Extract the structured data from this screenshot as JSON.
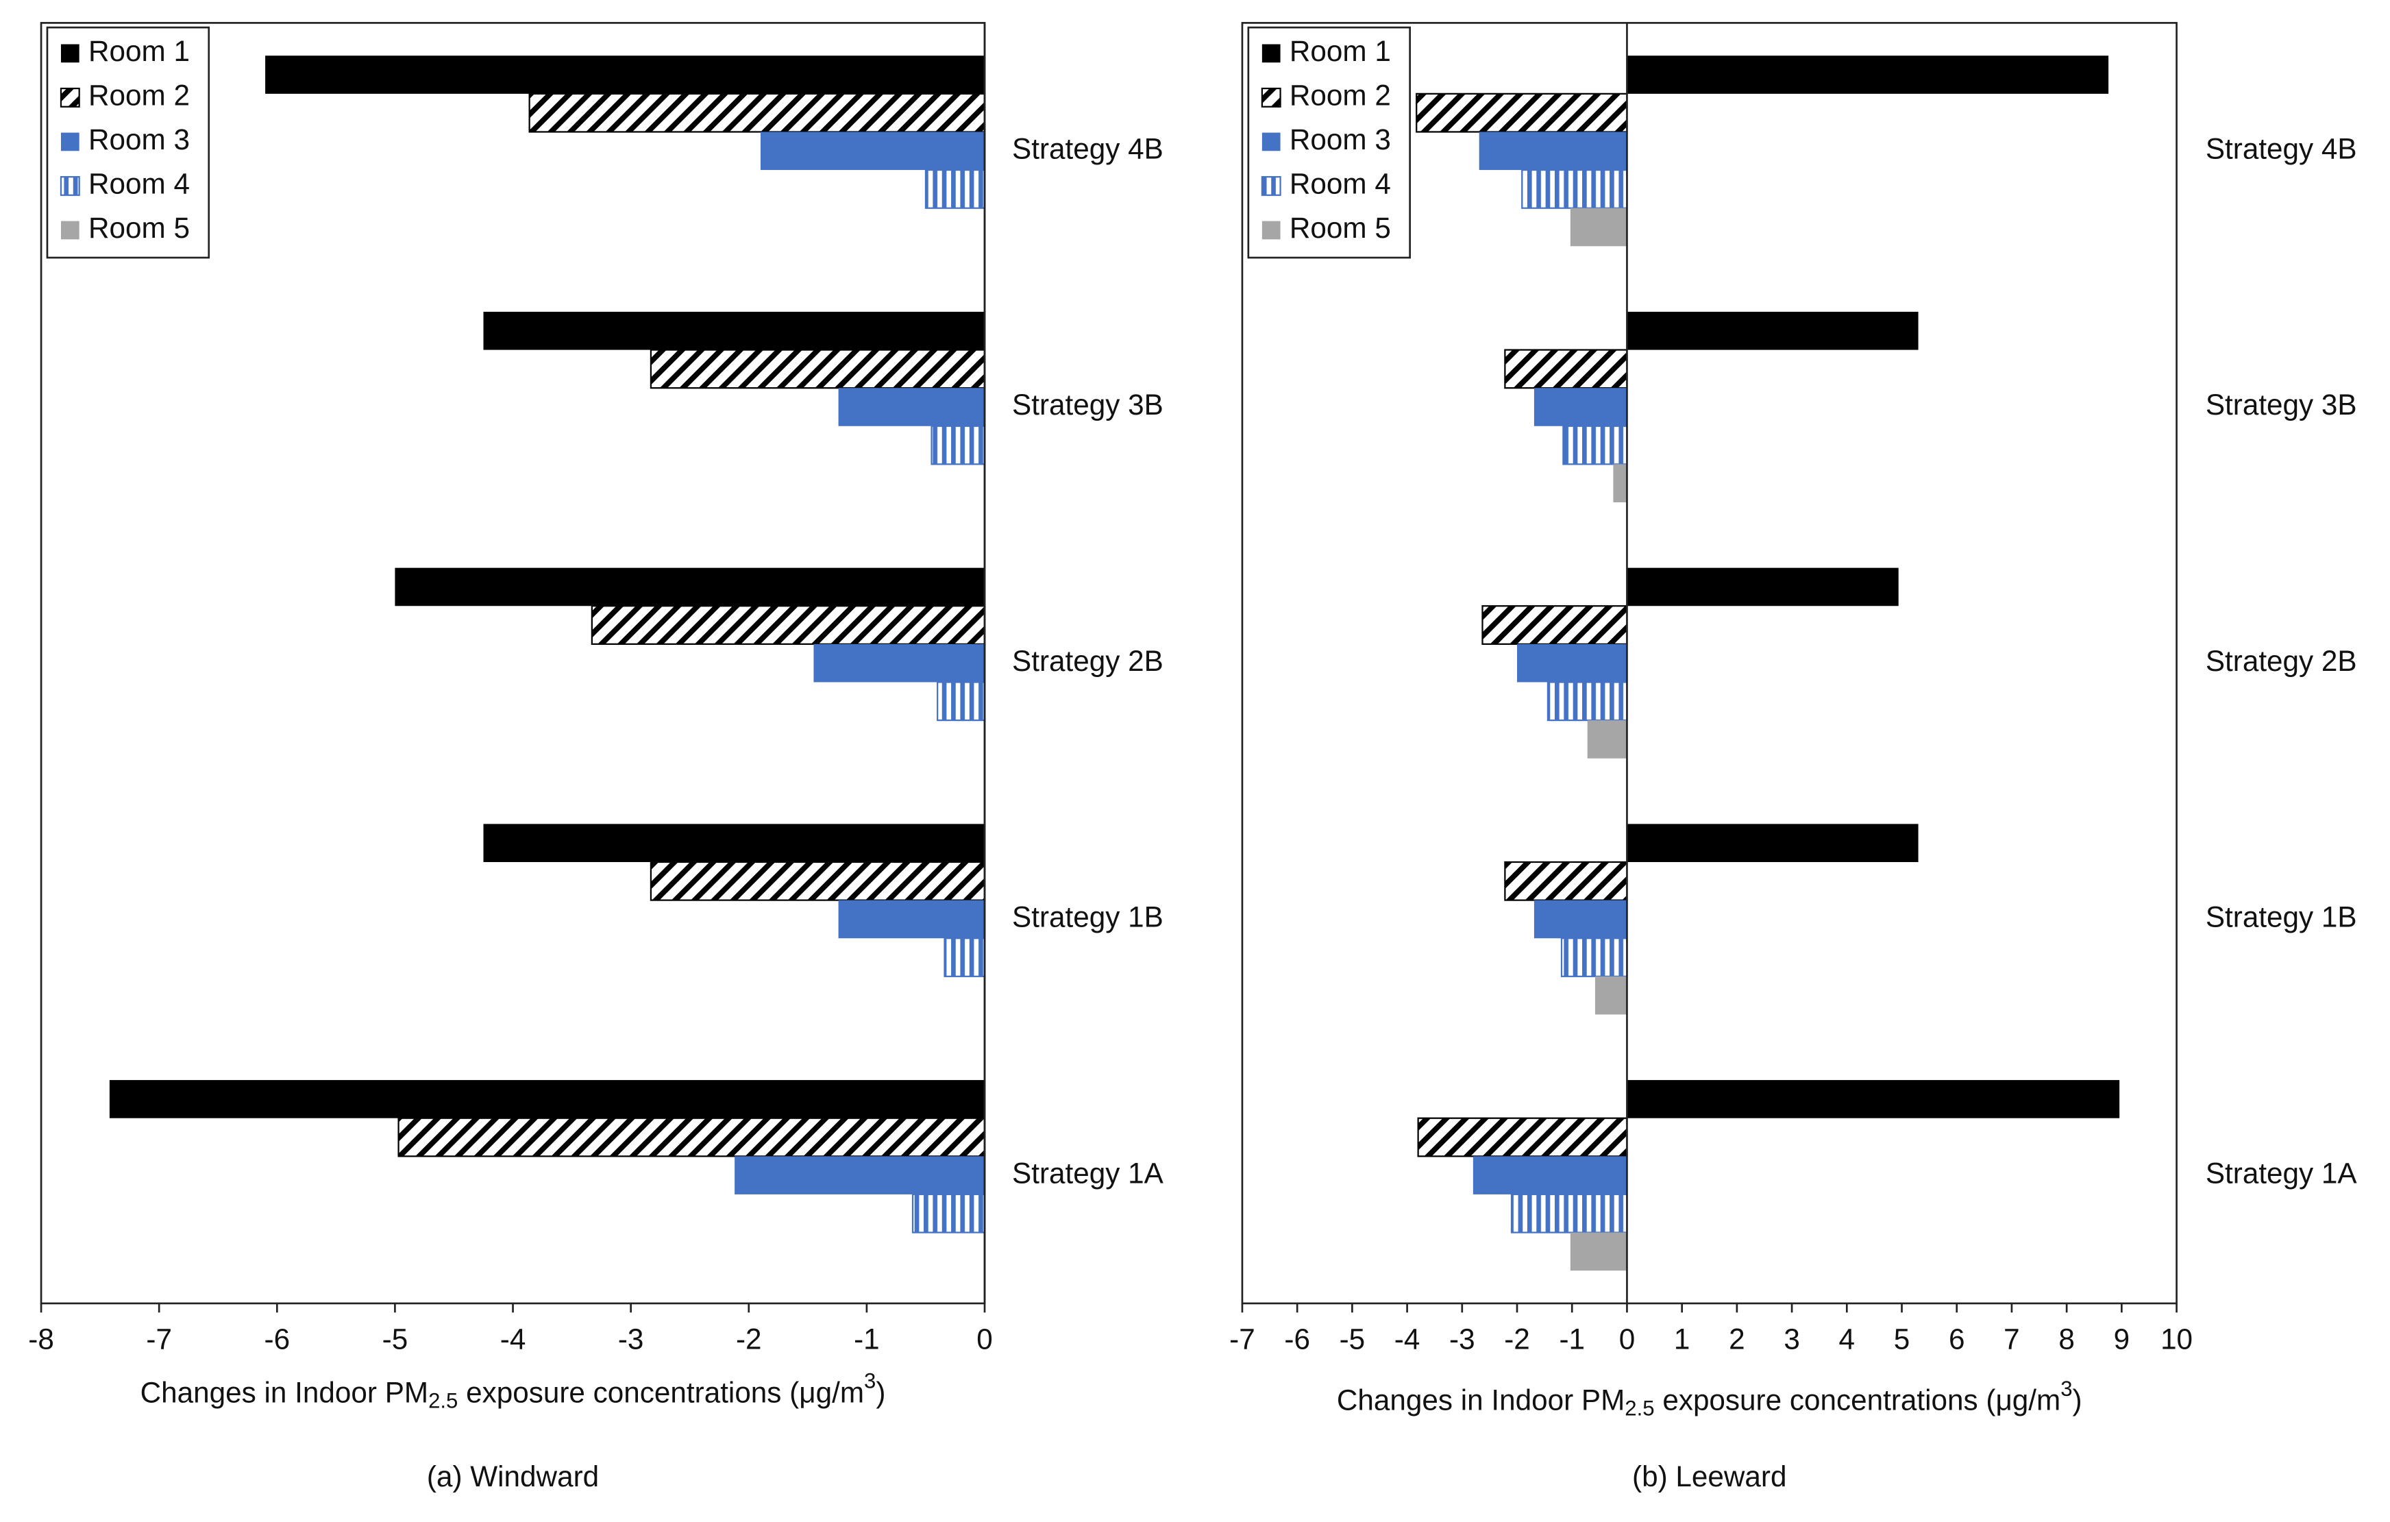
{
  "chart_data": [
    {
      "type": "barh",
      "title": "(a) Windward",
      "xlabel": [
        "Changes in Indoor PM",
        "2.5",
        " exposure concentrations (μg/m",
        "3",
        ")"
      ],
      "categories": [
        "Strategy 4B",
        "Strategy 3B",
        "Strategy 2B",
        "Strategy 1B",
        "Strategy 1A"
      ],
      "series": [
        {
          "name": "Room 1",
          "color": "#000000",
          "pattern": "solid",
          "values": [
            -6.1,
            -4.25,
            -5.0,
            -4.25,
            -7.42
          ]
        },
        {
          "name": "Room 2",
          "color": "#000000",
          "pattern": "diagonal",
          "values": [
            -3.86,
            -2.83,
            -3.33,
            -2.83,
            -4.97
          ]
        },
        {
          "name": "Room 3",
          "color": "#4472c4",
          "pattern": "solid",
          "values": [
            -1.9,
            -1.24,
            -1.45,
            -1.24,
            -2.12
          ]
        },
        {
          "name": "Room 4",
          "color": "#4472c4",
          "pattern": "vertical",
          "values": [
            -0.5,
            -0.45,
            -0.4,
            -0.34,
            -0.61
          ]
        },
        {
          "name": "Room 5",
          "color": "#a6a6a6",
          "pattern": "solid",
          "values": [
            0,
            0,
            0,
            0,
            0
          ]
        }
      ],
      "xlim": [
        -8,
        0
      ],
      "xticks": [
        -8,
        -7,
        -6,
        -5,
        -4,
        -3,
        -2,
        -1,
        0
      ],
      "legend": "upper left"
    },
    {
      "type": "barh",
      "title": "(b) Leeward",
      "xlabel": [
        "Changes in Indoor PM",
        "2.5",
        " exposure concentrations (μg/m",
        "3",
        ")"
      ],
      "categories": [
        "Strategy 4B",
        "Strategy 3B",
        "Strategy 2B",
        "Strategy 1B",
        "Strategy 1A"
      ],
      "series": [
        {
          "name": "Room 1",
          "color": "#000000",
          "pattern": "solid",
          "values": [
            8.76,
            5.3,
            4.94,
            5.3,
            8.96
          ]
        },
        {
          "name": "Room 2",
          "color": "#000000",
          "pattern": "diagonal",
          "values": [
            -3.83,
            -2.22,
            -2.63,
            -2.22,
            -3.8
          ]
        },
        {
          "name": "Room 3",
          "color": "#4472c4",
          "pattern": "solid",
          "values": [
            -2.69,
            -1.69,
            -2.0,
            -1.69,
            -2.8
          ]
        },
        {
          "name": "Room 4",
          "color": "#4472c4",
          "pattern": "vertical",
          "values": [
            -1.91,
            -1.16,
            -1.44,
            -1.19,
            -2.1
          ]
        },
        {
          "name": "Room 5",
          "color": "#a6a6a6",
          "pattern": "solid",
          "values": [
            -1.03,
            -0.25,
            -0.72,
            -0.58,
            -1.03
          ]
        }
      ],
      "xlim": [
        -7,
        10
      ],
      "xticks": [
        -7,
        -6,
        -5,
        -4,
        -3,
        -2,
        -1,
        0,
        1,
        2,
        3,
        4,
        5,
        6,
        7,
        8,
        9,
        10
      ],
      "legend": "upper left"
    }
  ]
}
